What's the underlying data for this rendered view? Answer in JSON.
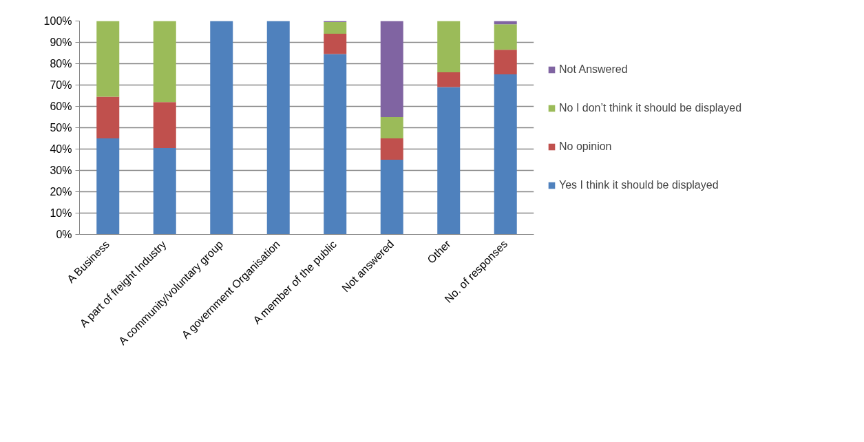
{
  "chart_data": {
    "type": "bar",
    "stacked": true,
    "categories": [
      "A Business",
      "A part of freight Industry",
      "A community/voluntary group",
      "A government Organisation",
      "A member of the public",
      "Not answered",
      "Other",
      "No. of responses"
    ],
    "series": [
      {
        "name": "Yes I think it should be displayed",
        "color": "#4f81bd",
        "values": [
          45,
          40.5,
          100,
          100,
          84.5,
          35,
          69,
          75
        ]
      },
      {
        "name": "No opinion",
        "color": "#c0504d",
        "values": [
          19.5,
          21.5,
          0,
          0,
          9.5,
          10,
          7,
          11.5
        ]
      },
      {
        "name": "No I don’t think it should be displayed",
        "color": "#9bbb59",
        "values": [
          35.5,
          38,
          0,
          0,
          5.5,
          10,
          24,
          12
        ]
      },
      {
        "name": "Not Answered",
        "color": "#8064a2",
        "values": [
          0,
          0,
          0,
          0,
          0.5,
          45,
          0,
          1.5
        ]
      }
    ],
    "ylim": [
      0,
      100
    ],
    "yticks": [
      {
        "value": 0,
        "label": "0%"
      },
      {
        "value": 10,
        "label": "10%"
      },
      {
        "value": 20,
        "label": "20%"
      },
      {
        "value": 30,
        "label": "30%"
      },
      {
        "value": 40,
        "label": "40%"
      },
      {
        "value": 50,
        "label": "50%"
      },
      {
        "value": 60,
        "label": "60%"
      },
      {
        "value": 70,
        "label": "70%"
      },
      {
        "value": 80,
        "label": "80%"
      },
      {
        "value": 90,
        "label": "90%"
      },
      {
        "value": 100,
        "label": "100%"
      }
    ],
    "grid": "y",
    "legend": "right"
  }
}
